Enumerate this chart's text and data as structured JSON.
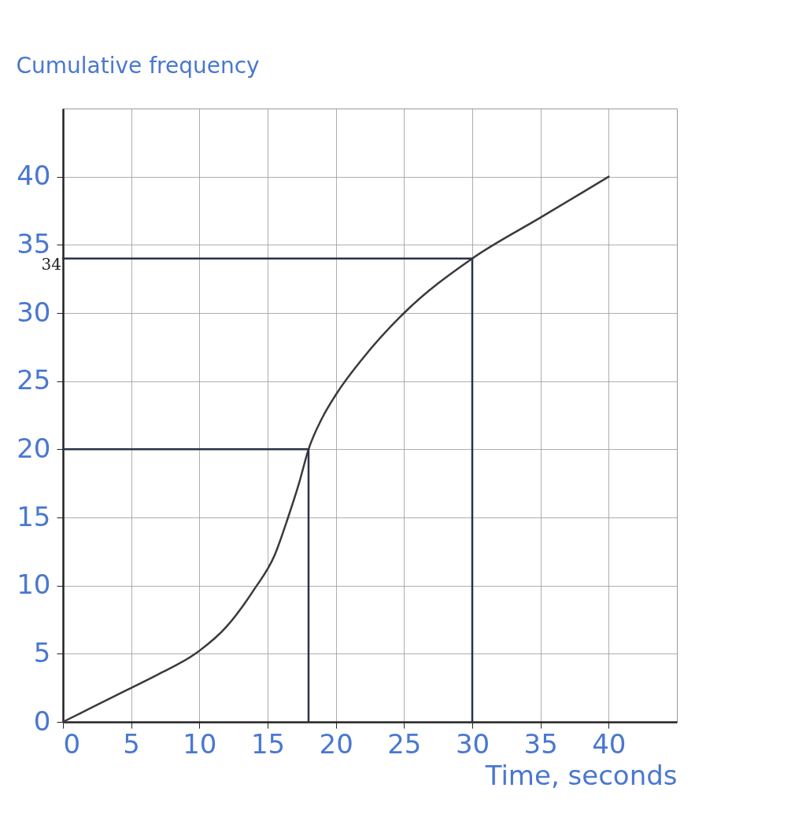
{
  "chart_data": {
    "type": "line",
    "ylabel": "Cumulative frequency",
    "xlabel": "Time, seconds",
    "xlim": [
      0,
      45
    ],
    "ylim": [
      0,
      45
    ],
    "xticks": [
      0,
      5,
      10,
      15,
      20,
      25,
      30,
      35,
      40
    ],
    "yticks": [
      0,
      5,
      10,
      15,
      20,
      25,
      30,
      35,
      40
    ],
    "grid": true,
    "line_style": "solid",
    "series": [
      {
        "color": "#3a3a3a",
        "x": [
          0,
          2,
          4.6,
          7,
          9.7,
          12,
          14,
          15.5,
          16.5,
          17.3,
          18,
          19,
          20,
          22,
          25,
          30,
          35,
          40
        ],
        "values": [
          0,
          1,
          2.3,
          3.5,
          5,
          7,
          9.7,
          12.2,
          15,
          17.5,
          20,
          22.3,
          24,
          26.7,
          30,
          34,
          37,
          40
        ]
      },
      {
        "color": "#2a3347",
        "x": [
          0,
          18,
          18
        ],
        "values": [
          20,
          20,
          0
        ]
      },
      {
        "color": "#2a3347",
        "x": [
          0,
          30,
          30
        ],
        "values": [
          34,
          34,
          0
        ]
      }
    ],
    "annotations": [
      {
        "text": "34",
        "x": 0,
        "y": 34
      }
    ]
  }
}
